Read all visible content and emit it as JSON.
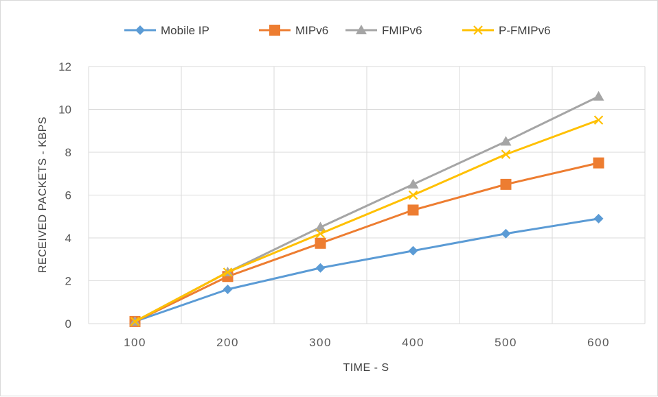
{
  "chart_data": {
    "type": "line",
    "title": "",
    "xlabel": "TIME - S",
    "ylabel": "RECEIVED PACKETS - KBPS",
    "categories": [
      "100",
      "200",
      "300",
      "400",
      "500",
      "600"
    ],
    "x": [
      100,
      200,
      300,
      400,
      500,
      600
    ],
    "ylim": [
      0,
      12
    ],
    "yticks": [
      "0",
      "2",
      "4",
      "6",
      "8",
      "10",
      "12"
    ],
    "grid": true,
    "legend_position": "top",
    "series": [
      {
        "name": "Mobile IP",
        "color": "#5b9bd5",
        "marker": "diamond",
        "values": [
          0.1,
          1.6,
          2.6,
          3.4,
          4.2,
          4.9
        ]
      },
      {
        "name": "MIPv6",
        "color": "#ed7d31",
        "marker": "square",
        "values": [
          0.1,
          2.2,
          3.75,
          5.3,
          6.5,
          7.5
        ]
      },
      {
        "name": "FMIPv6",
        "color": "#a5a5a5",
        "marker": "triangle",
        "values": [
          0.1,
          2.4,
          4.5,
          6.5,
          8.5,
          10.6
        ]
      },
      {
        "name": "P-FMIPv6",
        "color": "#ffc000",
        "marker": "x",
        "values": [
          0.1,
          2.4,
          4.2,
          6.0,
          7.9,
          9.5
        ]
      }
    ]
  }
}
